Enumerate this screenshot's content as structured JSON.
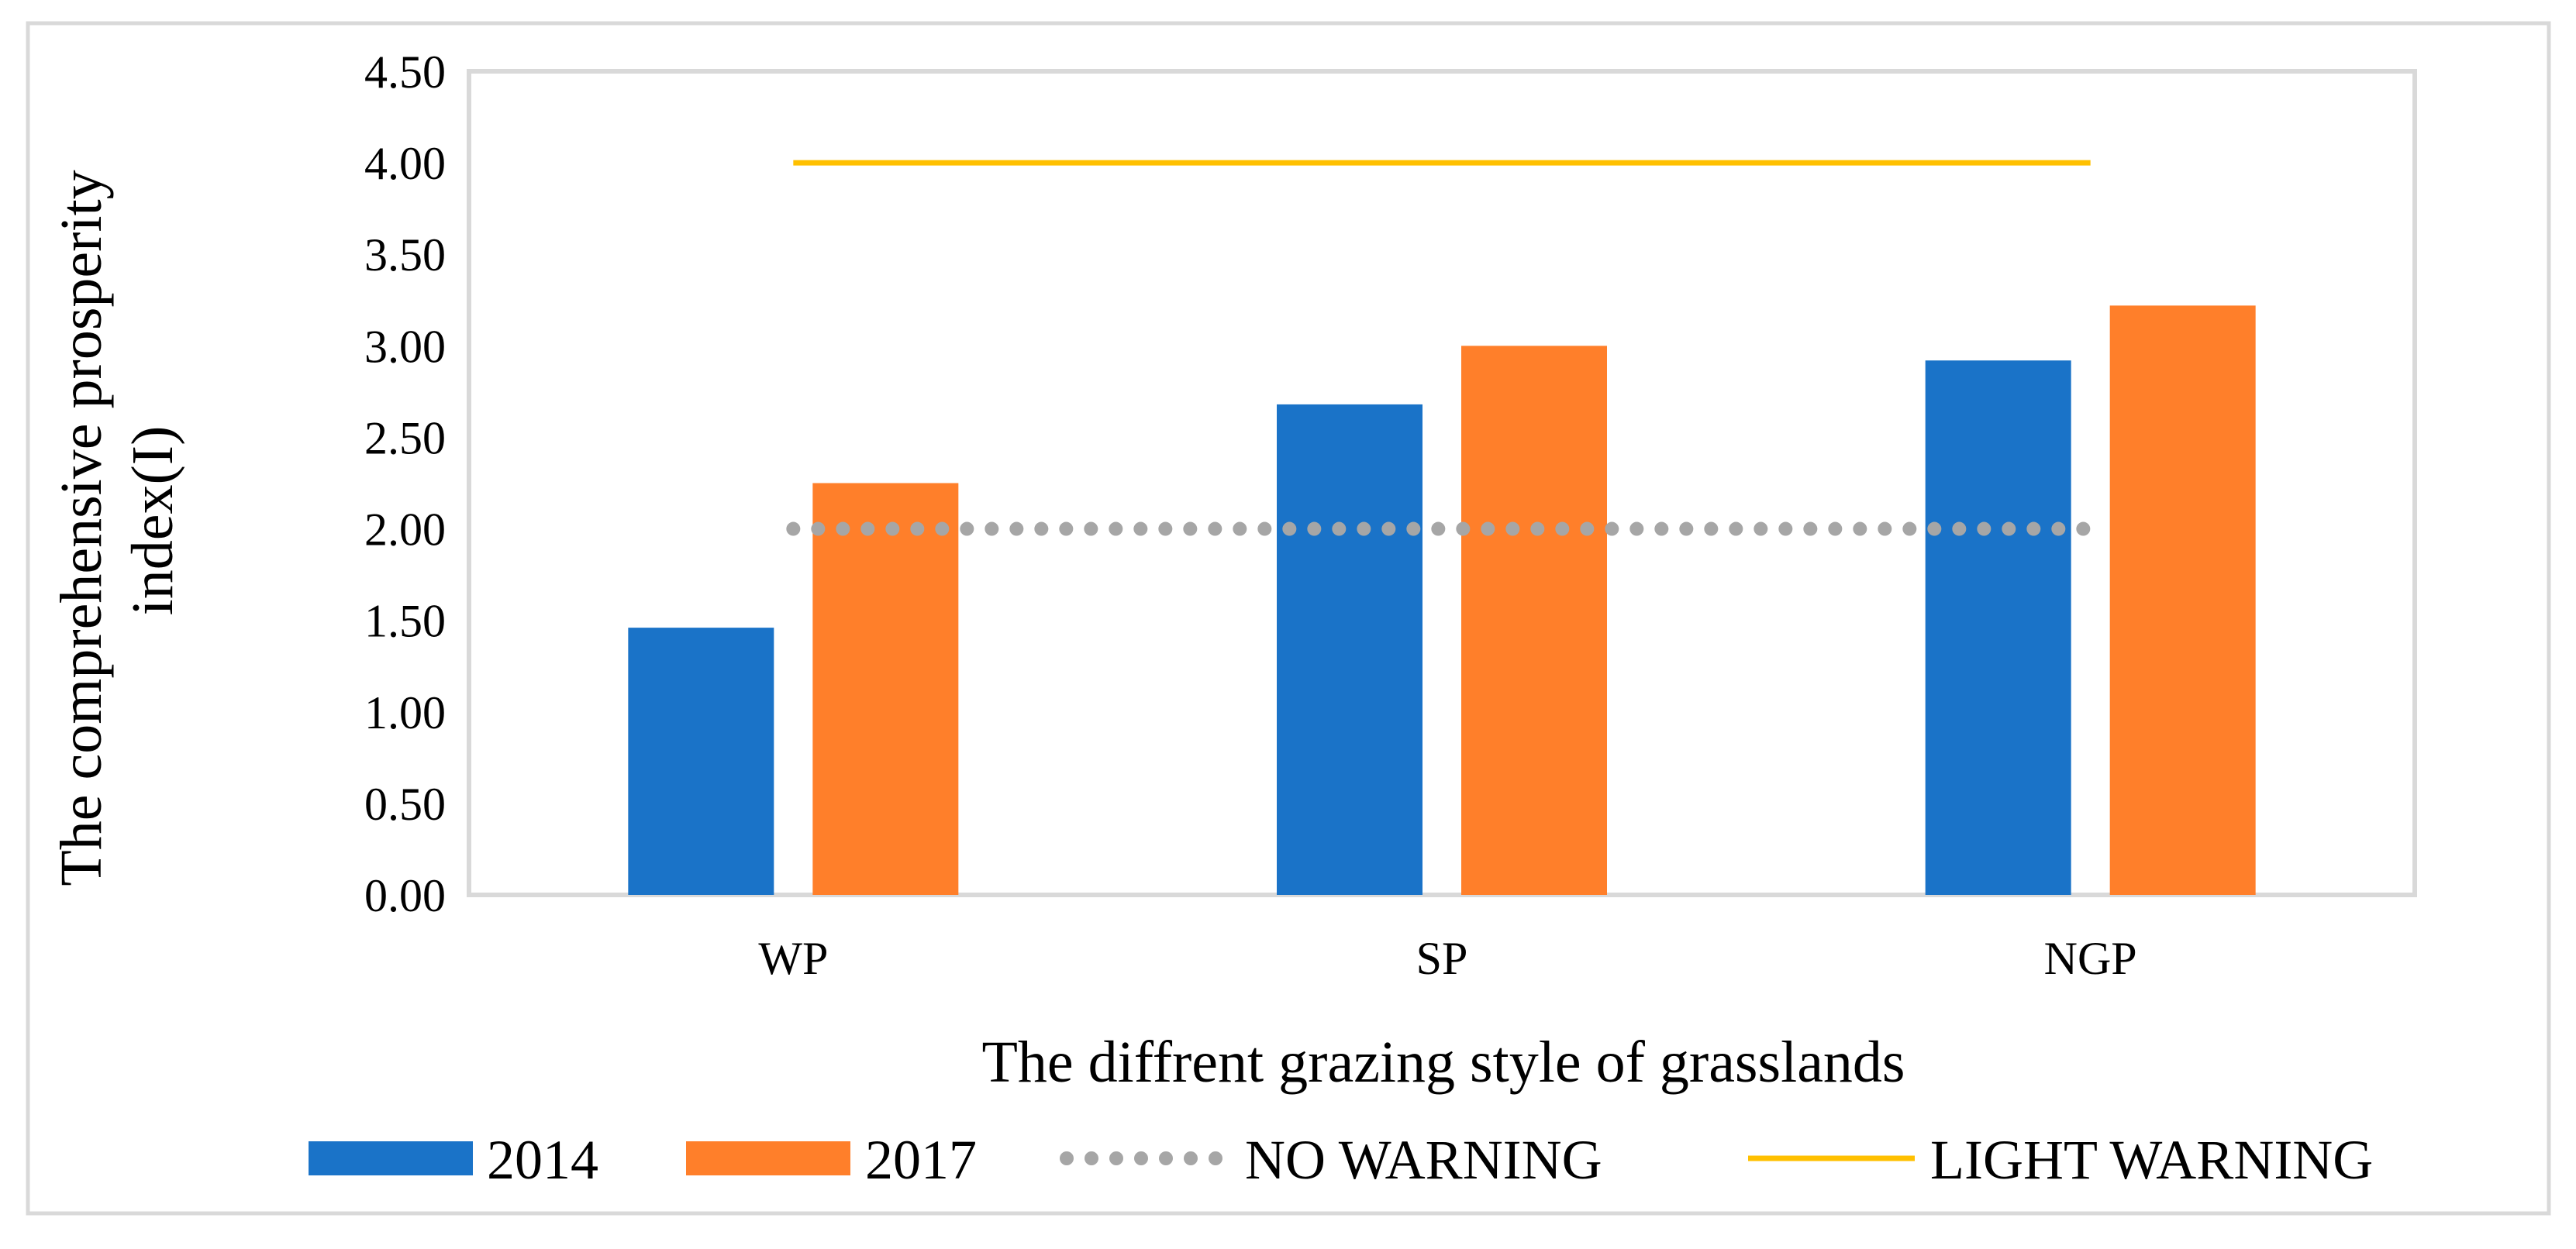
{
  "chart_data": {
    "type": "bar",
    "title": "",
    "categories": [
      "WP",
      "SP",
      "NGP"
    ],
    "series": [
      {
        "name": "2014",
        "kind": "bar",
        "color": "#1a73c8",
        "values": [
          1.46,
          2.68,
          2.92
        ]
      },
      {
        "name": "2017",
        "kind": "bar",
        "color": "#ff7f2a",
        "values": [
          2.25,
          3.0,
          3.22
        ]
      }
    ],
    "reference_lines": [
      {
        "name": "NO WARNING",
        "kind": "dotted-line",
        "color": "#a6a6a6",
        "value": 2.0
      },
      {
        "name": "LIGHT WARNING",
        "kind": "solid-line",
        "color": "#ffc000",
        "value": 4.0
      }
    ],
    "xlabel": "The diffrent grazing style of grasslands",
    "ylabel": [
      "The comprehensive prosperity",
      "index(I)"
    ],
    "ylim": [
      0,
      4.5
    ],
    "yticks": [
      "0.00",
      "0.50",
      "1.00",
      "1.50",
      "2.00",
      "2.50",
      "3.00",
      "3.50",
      "4.00",
      "4.50"
    ],
    "grid": false,
    "legend_position": "bottom"
  }
}
